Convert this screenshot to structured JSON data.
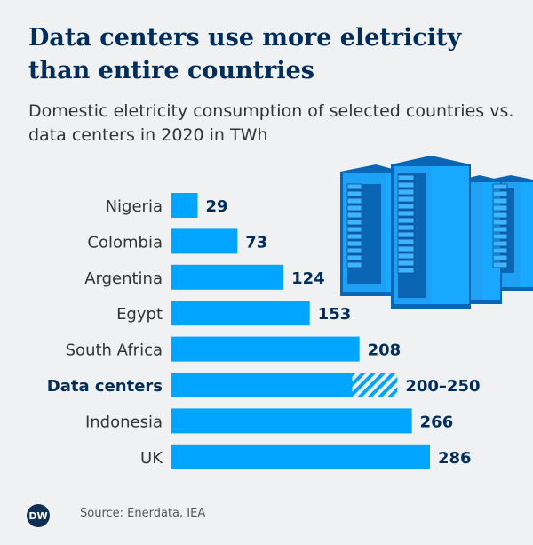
{
  "title": "Data centers use more eletricity than entire countries",
  "subtitle": "Domestic eletricity consumption of selected countries vs. data centers in 2020 in TWh",
  "source": "Source: Enerdata, IEA",
  "logo": "DW",
  "colors": {
    "bar": "#00a5ff",
    "text_dark": "#002d5a",
    "background": "#f0f1f3"
  },
  "chart_data": {
    "type": "bar",
    "orientation": "horizontal",
    "title": "Data centers use more eletricity than entire countries",
    "subtitle": "Domestic eletricity consumption of selected countries vs. data centers in 2020 in TWh",
    "categories": [
      "Nigeria",
      "Colombia",
      "Argentina",
      "Egypt",
      "South Africa",
      "Data centers",
      "Indonesia",
      "UK"
    ],
    "values": [
      29,
      73,
      124,
      153,
      208,
      [
        200,
        250
      ],
      266,
      286
    ],
    "labels": [
      "29",
      "73",
      "124",
      "153",
      "208",
      "200–250",
      "266",
      "286"
    ],
    "highlight": "Data centers",
    "grid": false,
    "xlim": [
      0,
      286
    ]
  }
}
